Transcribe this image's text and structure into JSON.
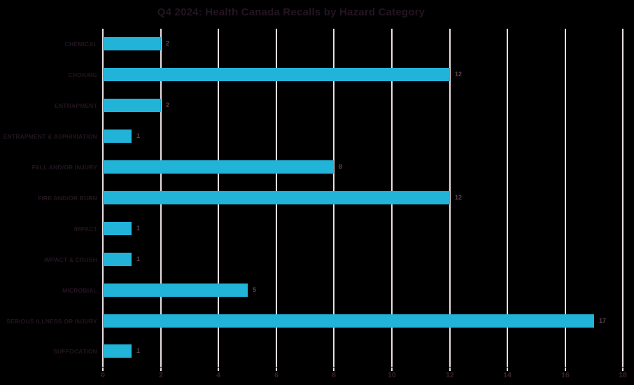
{
  "title": "Q4 2024: Health Canada Recalls by Hazard Category",
  "colors": {
    "background": "#000000",
    "bar": "#21B4D8",
    "gridline": "#E9DEE6",
    "title_text": "#241520",
    "category_text": "#241520",
    "value_text": "#5E4050",
    "tick_text": "#3A2230"
  },
  "chart_data": {
    "type": "bar",
    "orientation": "horizontal",
    "title": "Q4 2024: Health Canada Recalls by Hazard Category",
    "categories": [
      "CHEMICAL",
      "CHOKING",
      "ENTRAPMENT",
      "ENTRAPMENT & ASPHIXIATION",
      "FALL AND/OR INJURY",
      "FIRE AND/OR BURN",
      "IMPACT",
      "IMPACT & CRUSH",
      "MICROBIAL",
      "SERIOUS ILLNESS OR INJURY",
      "SUFFOCATION"
    ],
    "values": [
      2,
      12,
      2,
      1,
      8,
      12,
      1,
      1,
      5,
      17,
      1
    ],
    "xticks": [
      0,
      2,
      4,
      6,
      8,
      10,
      12,
      14,
      16,
      18
    ],
    "xlim": [
      0,
      18
    ],
    "xlabel": "",
    "ylabel": "",
    "grid": "vertical",
    "legend": "none",
    "value_labels": true
  }
}
